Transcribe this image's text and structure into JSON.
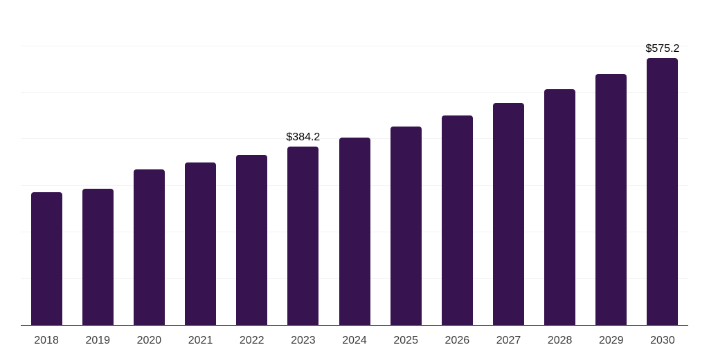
{
  "chart_data": {
    "type": "bar",
    "categories": [
      "2018",
      "2019",
      "2020",
      "2021",
      "2022",
      "2023",
      "2024",
      "2025",
      "2026",
      "2027",
      "2028",
      "2029",
      "2030"
    ],
    "values": [
      286,
      293,
      335,
      350,
      366,
      384.2,
      404,
      427,
      451.5,
      478,
      507.5,
      540,
      575.2
    ],
    "data_labels": [
      {
        "index": 5,
        "text": "$384.2"
      },
      {
        "index": 12,
        "text": "$575.2"
      }
    ],
    "title": "",
    "xlabel": "",
    "ylabel": "",
    "ylim": [
      0,
      700
    ],
    "gridline_step": 100,
    "grid": true,
    "legend": "none",
    "colors": {
      "bar": "#371450",
      "gridline": "#f2f2f2",
      "axis_line": "#222222",
      "tick_label": "#3c3c3c",
      "data_label": "#000000"
    }
  }
}
